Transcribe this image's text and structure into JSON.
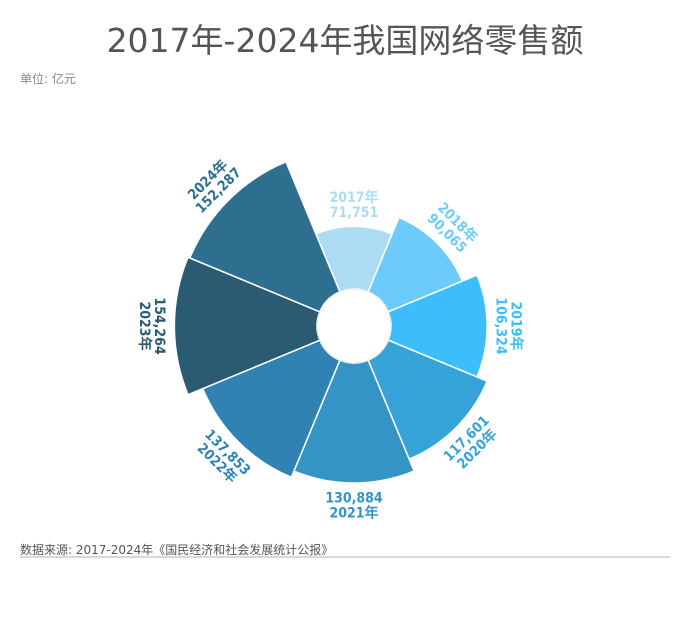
{
  "title": "2017年-2024年我国网络零售额",
  "unit": "单位: 亿元",
  "source": "数据来源: 2017-2024年《国民经济和社会发展统计公报》",
  "chart_data": {
    "type": "rose",
    "title": "2017年-2024年我国网络零售额",
    "categories": [
      "2017年",
      "2018年",
      "2019年",
      "2020年",
      "2021年",
      "2022年",
      "2023年",
      "2024年"
    ],
    "values": [
      71751,
      90065,
      106324,
      117601,
      130884,
      137853,
      154264,
      152287
    ],
    "value_labels": [
      "71,751",
      "90,065",
      "106,324",
      "117,601",
      "130,884",
      "137,853",
      "154,264",
      "152,287"
    ],
    "colors": [
      "#abdcf4",
      "#6ccbfb",
      "#3dbdfc",
      "#35a3d8",
      "#3594c6",
      "#2f82b1",
      "#2a5b73",
      "#2e6f8f"
    ],
    "direction": "clockwise from top"
  }
}
